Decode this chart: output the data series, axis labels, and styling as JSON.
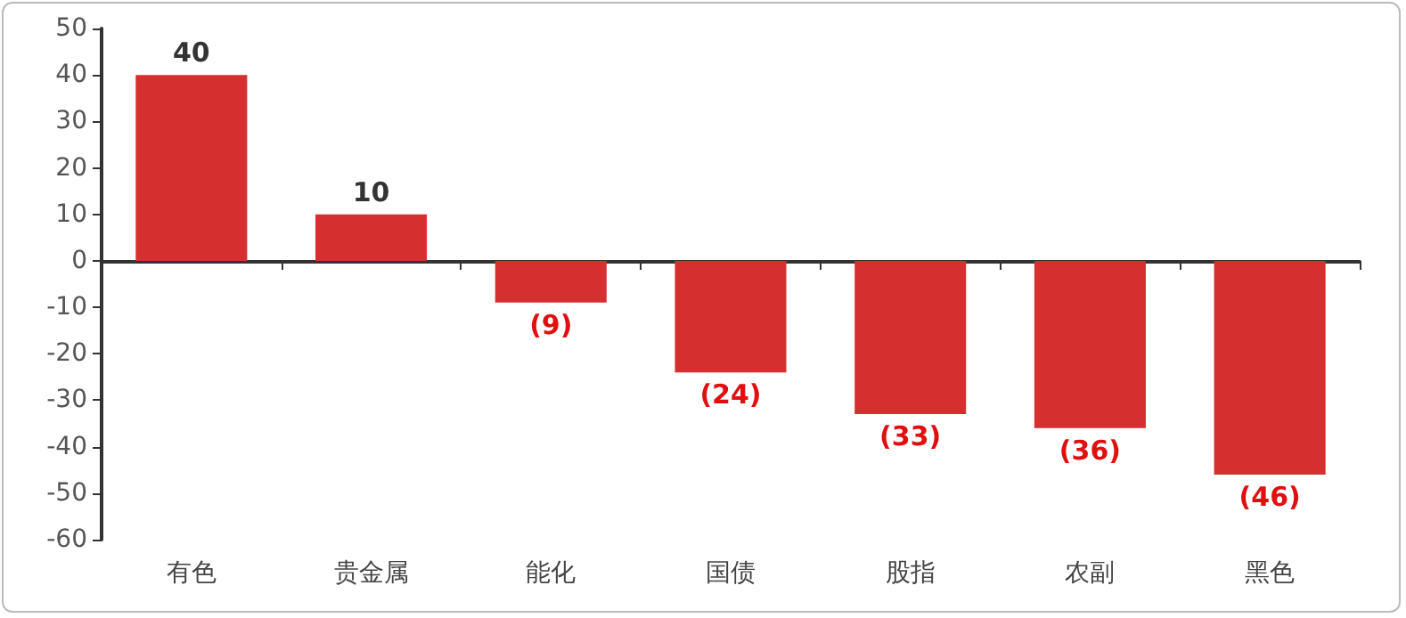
{
  "chart_data": {
    "type": "bar",
    "categories": [
      "有色",
      "贵金属",
      "能化",
      "国债",
      "股指",
      "农副",
      "黑色"
    ],
    "values": [
      40,
      10,
      -9,
      -24,
      -33,
      -36,
      -46
    ],
    "value_labels": [
      "40",
      "10",
      "(9)",
      "(24)",
      "(33)",
      "(36)",
      "(46)"
    ],
    "color": "#d62f2f",
    "ylim": [
      -60,
      50
    ],
    "yticks": [
      -60,
      -50,
      -40,
      -30,
      -20,
      -10,
      0,
      10,
      20,
      30,
      40,
      50
    ]
  }
}
